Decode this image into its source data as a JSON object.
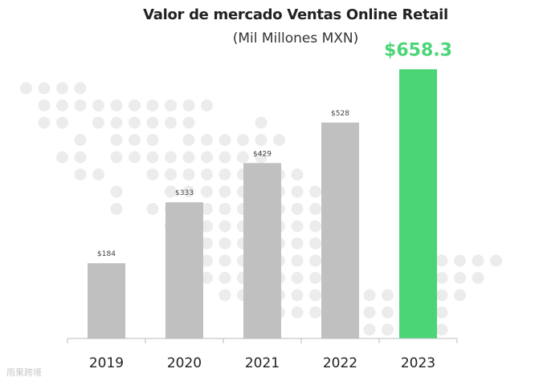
{
  "colors": {
    "bar": "#c0c0c0",
    "highlight": "#4cd576",
    "dots": "#ececec",
    "axis": "#bbbbbb"
  },
  "watermark": "雨果跨境",
  "chart_data": {
    "type": "bar",
    "title": "Valor de mercado Ventas Online Retail",
    "subtitle": "(Mil Millones MXN)",
    "categories": [
      "2019",
      "2020",
      "2021",
      "2022",
      "2023"
    ],
    "values": [
      184,
      333,
      429,
      528,
      658.3
    ],
    "labels": [
      "$184",
      "$333",
      "$429",
      "$528",
      "$658.3"
    ],
    "highlight_index": 4,
    "ylim": [
      0,
      710
    ],
    "grid": false,
    "legend": "none"
  }
}
